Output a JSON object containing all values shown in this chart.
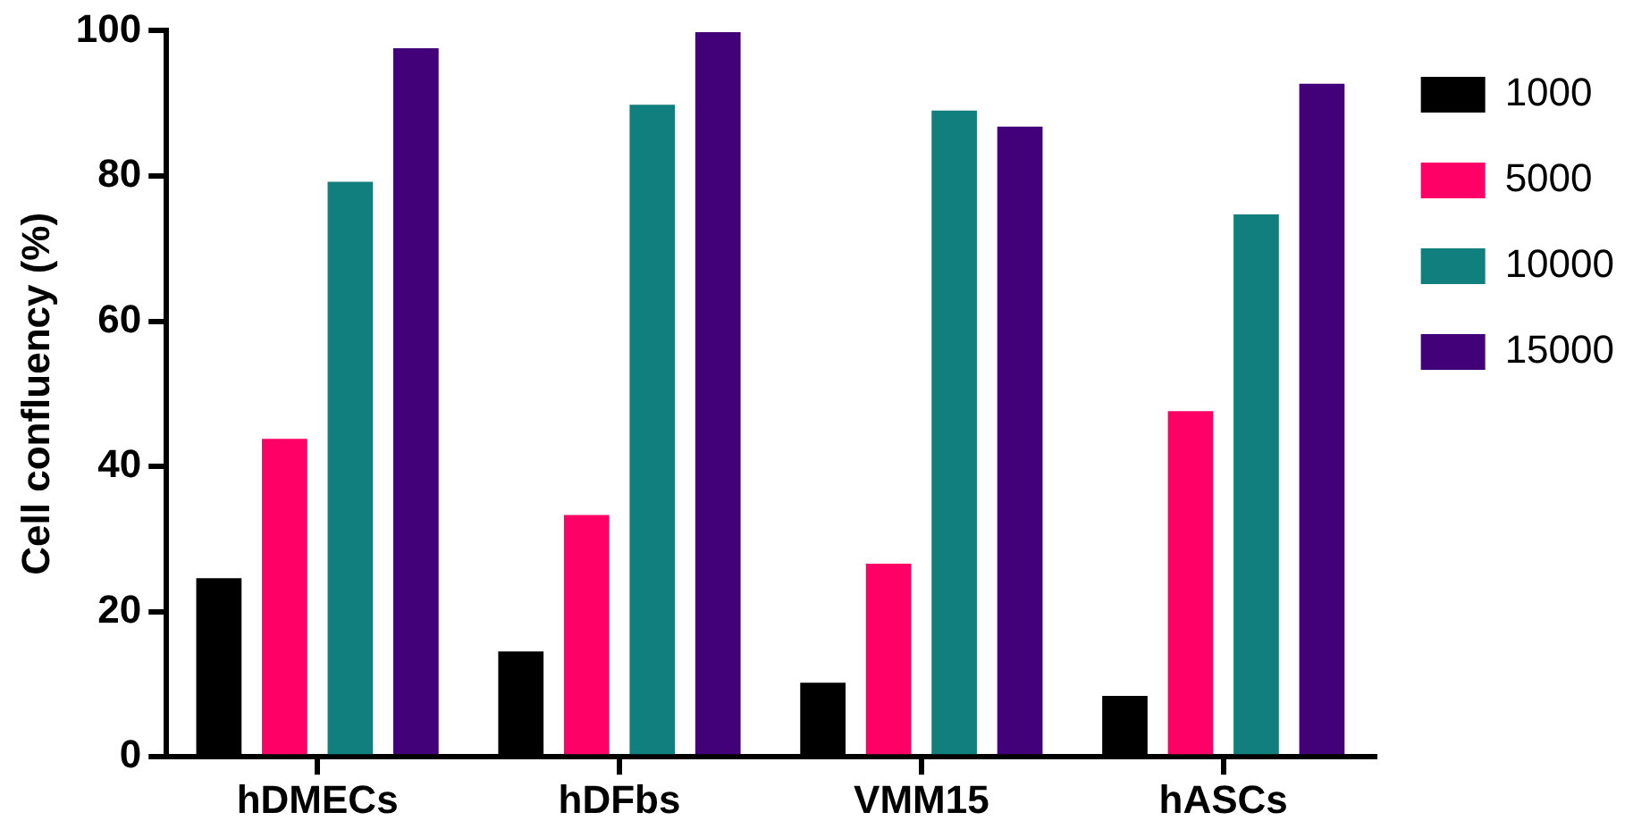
{
  "chart_data": {
    "type": "bar",
    "ylabel": "Cell confluency (%)",
    "categories": [
      "hDMECs",
      "hDFbs",
      "VMM15",
      "hASCs"
    ],
    "series": [
      {
        "name": "1000",
        "color": "#000000",
        "values": [
          24.6,
          14.5,
          10.2,
          8.4
        ]
      },
      {
        "name": "5000",
        "color": "#ff0066",
        "values": [
          43.8,
          33.3,
          26.6,
          47.6
        ]
      },
      {
        "name": "10000",
        "color": "#127f7f",
        "values": [
          79.2,
          89.8,
          89.0,
          74.7
        ]
      },
      {
        "name": "15000",
        "color": "#420079",
        "values": [
          97.6,
          99.8,
          86.8,
          92.7
        ]
      }
    ],
    "ylim": [
      0,
      100
    ],
    "yticks": [
      0,
      20,
      40,
      60,
      80,
      100
    ],
    "grid": false,
    "legend": "right"
  }
}
